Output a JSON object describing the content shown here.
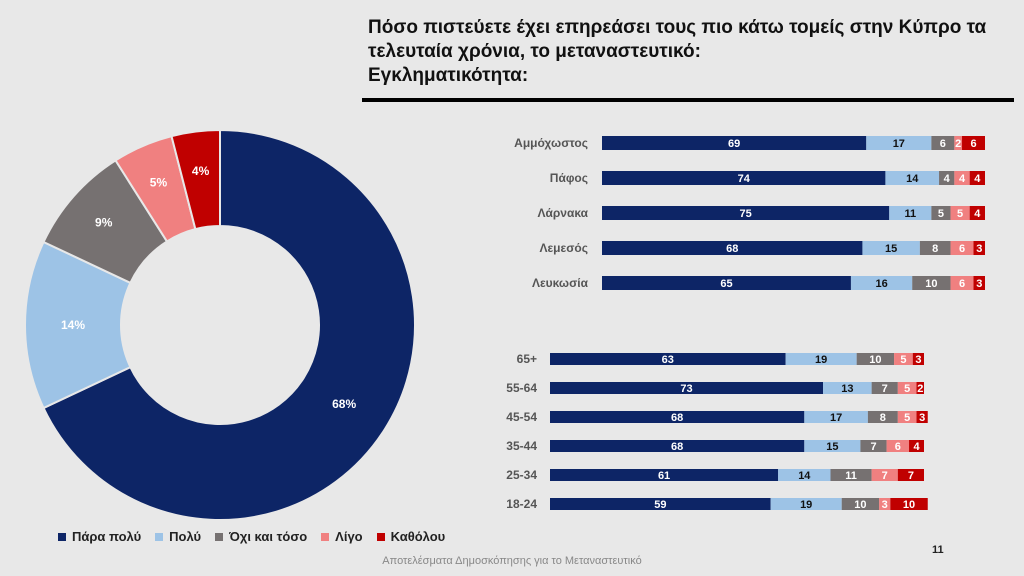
{
  "header": {
    "title_lines": [
      "Πόσο πιστεύετε έχει επηρεάσει τους πιο κάτω τομείς στην Κύπρο τα",
      "τελευταία χρόνια, το μεταναστευτικό:",
      "Εγκληματικότητα:"
    ]
  },
  "colors": [
    "#0d2566",
    "#9dc3e6",
    "#767171",
    "#f08080",
    "#c00000"
  ],
  "legend": [
    "Πάρα πολύ",
    "Πολύ",
    "Όχι και τόσο",
    "Λίγο",
    "Καθόλου"
  ],
  "chart_data": [
    {
      "type": "pie",
      "donut": true,
      "labels": [
        "Πάρα πολύ",
        "Πολύ",
        "Όχι και τόσο",
        "Λίγο",
        "Καθόλου"
      ],
      "values": [
        68,
        14,
        9,
        5,
        4
      ],
      "value_labels": [
        "68%",
        "14%",
        "9%",
        "5%",
        "4%"
      ]
    },
    {
      "type": "bar",
      "orientation": "horizontal",
      "stacked": true,
      "categories": [
        "Αμμόχωστος",
        "Πάφος",
        "Λάρνακα",
        "Λεμεσός",
        "Λευκωσία"
      ],
      "series": [
        {
          "name": "Πάρα πολύ",
          "values": [
            69,
            74,
            75,
            68,
            65
          ]
        },
        {
          "name": "Πολύ",
          "values": [
            17,
            14,
            11,
            15,
            16
          ]
        },
        {
          "name": "Όχι και τόσο",
          "values": [
            6,
            4,
            5,
            8,
            10
          ]
        },
        {
          "name": "Λίγο",
          "values": [
            2,
            4,
            5,
            6,
            6
          ]
        },
        {
          "name": "Καθόλου",
          "values": [
            6,
            4,
            4,
            3,
            3
          ]
        }
      ]
    },
    {
      "type": "bar",
      "orientation": "horizontal",
      "stacked": true,
      "categories": [
        "65+",
        "55-64",
        "45-54",
        "35-44",
        "25-34",
        "18-24"
      ],
      "series": [
        {
          "name": "Πάρα πολύ",
          "values": [
            63,
            73,
            68,
            68,
            61,
            59
          ]
        },
        {
          "name": "Πολύ",
          "values": [
            19,
            13,
            17,
            15,
            14,
            19
          ]
        },
        {
          "name": "Όχι και τόσο",
          "values": [
            10,
            7,
            8,
            7,
            11,
            10
          ]
        },
        {
          "name": "Λίγο",
          "values": [
            5,
            5,
            5,
            6,
            7,
            3
          ]
        },
        {
          "name": "Καθόλου",
          "values": [
            3,
            2,
            3,
            4,
            7,
            10
          ]
        }
      ]
    }
  ],
  "footer": "Αποτελέσματα Δημοσκόπησης για το Μεταναστευτικό",
  "page_number": "11"
}
